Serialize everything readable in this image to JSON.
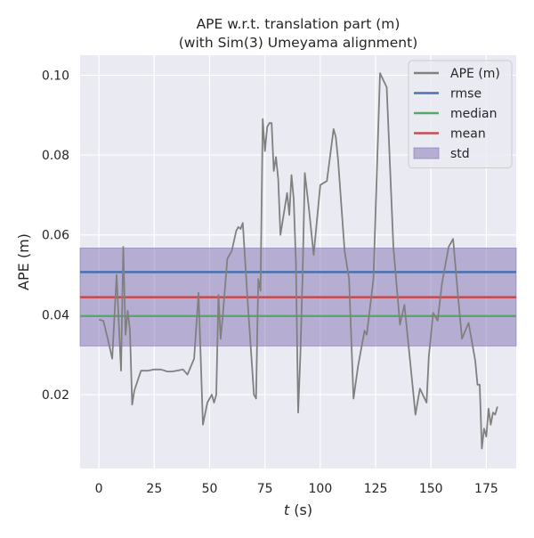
{
  "chart_data": {
    "type": "line",
    "title": "APE w.r.t. translation part (m)",
    "subtitle": "(with Sim(3) Umeyama alignment)",
    "xlabel": "t (s)",
    "ylabel": "APE (m)",
    "xlim": [
      -8.5,
      188.5
    ],
    "ylim": [
      0.0015,
      0.105
    ],
    "xticks": [
      0,
      25,
      50,
      75,
      100,
      125,
      150,
      175
    ],
    "yticks": [
      0.02,
      0.04,
      0.06,
      0.08,
      0.1
    ],
    "ytick_labels": [
      "0.02",
      "0.04",
      "0.06",
      "0.08",
      "0.10"
    ],
    "grid": true,
    "legend_position": "top-right",
    "colors": {
      "background": "#eaeaf2",
      "grid": "#ffffff",
      "ape": "#808080",
      "rmse": "#4c72b0",
      "median": "#55a868",
      "mean": "#c44e52",
      "std": "#8172b2"
    },
    "series": [
      {
        "name": "APE (m)",
        "x": [
          0,
          2,
          4,
          6,
          8,
          10,
          11,
          12,
          13,
          14,
          15,
          16,
          19,
          22,
          25,
          28,
          31,
          33,
          35,
          38,
          40,
          43,
          45,
          47,
          49,
          51,
          52,
          53,
          54,
          55,
          56,
          58,
          60,
          62,
          63,
          64,
          65,
          67,
          70,
          71,
          72,
          73,
          74,
          75,
          76,
          77,
          78,
          79,
          80,
          81,
          82,
          85,
          86,
          87,
          88,
          89,
          90,
          91,
          92,
          93,
          95,
          97,
          100,
          103,
          106,
          107,
          108,
          111,
          113,
          115,
          117,
          120,
          121,
          124,
          127,
          130,
          133,
          136,
          138,
          140,
          143,
          145,
          148,
          149,
          151,
          153,
          155,
          158,
          160,
          162,
          164,
          167,
          170,
          171,
          172,
          173,
          174,
          175,
          176,
          177,
          178,
          179,
          180
        ],
        "values": [
          0.0388,
          0.0385,
          0.034,
          0.029,
          0.05,
          0.026,
          0.057,
          0.035,
          0.041,
          0.036,
          0.0175,
          0.021,
          0.026,
          0.026,
          0.0263,
          0.0263,
          0.0258,
          0.0258,
          0.026,
          0.0263,
          0.025,
          0.029,
          0.0455,
          0.0125,
          0.018,
          0.02,
          0.018,
          0.02,
          0.045,
          0.034,
          0.04,
          0.054,
          0.056,
          0.061,
          0.062,
          0.0615,
          0.063,
          0.045,
          0.02,
          0.019,
          0.049,
          0.046,
          0.089,
          0.081,
          0.087,
          0.088,
          0.088,
          0.076,
          0.0795,
          0.074,
          0.06,
          0.0705,
          0.065,
          0.075,
          0.069,
          0.053,
          0.0155,
          0.03,
          0.05,
          0.0755,
          0.066,
          0.055,
          0.0725,
          0.0735,
          0.0865,
          0.0845,
          0.079,
          0.056,
          0.049,
          0.019,
          0.027,
          0.036,
          0.035,
          0.049,
          0.1005,
          0.097,
          0.057,
          0.0375,
          0.0425,
          0.0315,
          0.015,
          0.0215,
          0.018,
          0.0295,
          0.0405,
          0.0385,
          0.048,
          0.057,
          0.059,
          0.046,
          0.034,
          0.038,
          0.0285,
          0.0225,
          0.0225,
          0.0065,
          0.0115,
          0.0095,
          0.0165,
          0.0125,
          0.0155,
          0.015,
          0.017
        ]
      },
      {
        "name": "rmse",
        "value": 0.0507
      },
      {
        "name": "median",
        "value": 0.0397
      },
      {
        "name": "mean",
        "value": 0.0444
      },
      {
        "name": "std",
        "lower": 0.0322,
        "upper": 0.0567
      }
    ]
  },
  "legend": [
    {
      "label": "APE (m)",
      "kind": "line",
      "color": "#808080"
    },
    {
      "label": "rmse",
      "kind": "line",
      "color": "#4c72b0"
    },
    {
      "label": "median",
      "kind": "line",
      "color": "#55a868"
    },
    {
      "label": "mean",
      "kind": "line",
      "color": "#c44e52"
    },
    {
      "label": "std",
      "kind": "patch",
      "color": "#8172b2"
    }
  ]
}
